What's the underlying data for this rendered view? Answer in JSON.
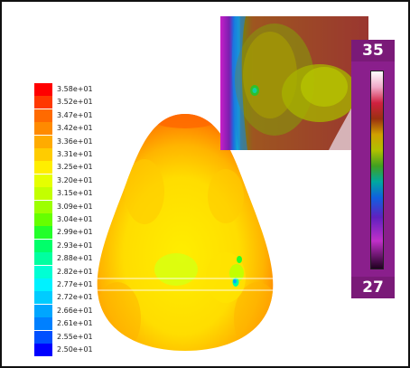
{
  "legend": {
    "entries": [
      {
        "label": "3.58e+01",
        "color": "#ff0000"
      },
      {
        "label": "3.52e+01",
        "color": "#ff3800"
      },
      {
        "label": "3.47e+01",
        "color": "#ff6a00"
      },
      {
        "label": "3.42e+01",
        "color": "#ff8a00"
      },
      {
        "label": "3.36e+01",
        "color": "#ffab00"
      },
      {
        "label": "3.31e+01",
        "color": "#ffcc00"
      },
      {
        "label": "3.25e+01",
        "color": "#ffee00"
      },
      {
        "label": "3.20e+01",
        "color": "#e6ff00"
      },
      {
        "label": "3.15e+01",
        "color": "#c3ff00"
      },
      {
        "label": "3.09e+01",
        "color": "#9dff00"
      },
      {
        "label": "3.04e+01",
        "color": "#66ff00"
      },
      {
        "label": "2.99e+01",
        "color": "#22ff2a"
      },
      {
        "label": "2.93e+01",
        "color": "#00ff6a"
      },
      {
        "label": "2.88e+01",
        "color": "#00ffa0"
      },
      {
        "label": "2.82e+01",
        "color": "#00ffd4"
      },
      {
        "label": "2.77e+01",
        "color": "#00f2ff"
      },
      {
        "label": "2.72e+01",
        "color": "#00ccff"
      },
      {
        "label": "2.66e+01",
        "color": "#00a6ff"
      },
      {
        "label": "2.61e+01",
        "color": "#0080ff"
      },
      {
        "label": "2.55e+01",
        "color": "#0050ff"
      },
      {
        "label": "2.50e+01",
        "color": "#0000ff"
      }
    ]
  },
  "thermal_colorbar": {
    "max_label": "35",
    "min_label": "27"
  }
}
